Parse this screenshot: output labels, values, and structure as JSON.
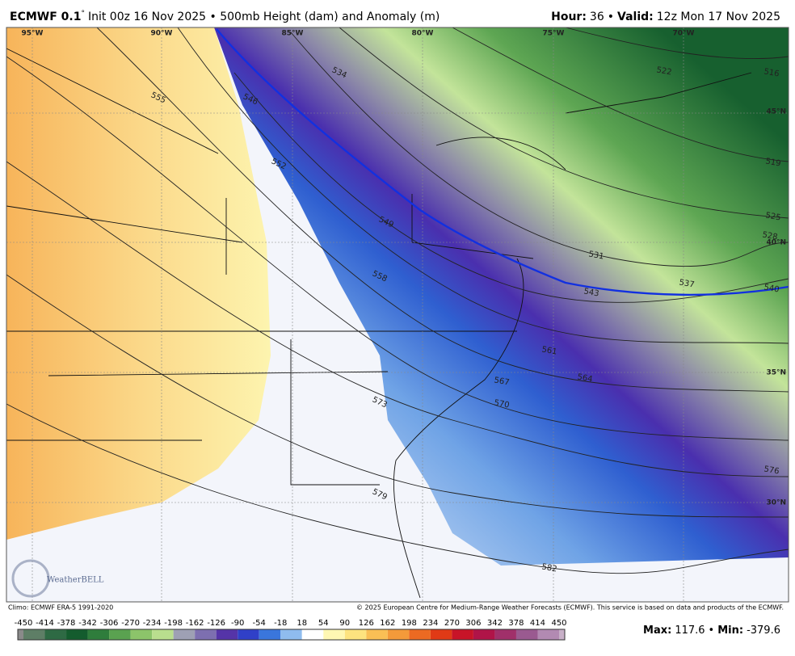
{
  "header": {
    "model": "ECMWF 0.1",
    "degree": "°",
    "description": "Init 00z 16 Nov 2025 • 500mb Height (dam) and Anomaly (m)",
    "hour_label": "Hour:",
    "hour_value": "36",
    "separator": "•",
    "valid_label": "Valid:",
    "valid_value": "12z Mon 17 Nov 2025"
  },
  "longitudes": [
    "95°W",
    "90°W",
    "85°W",
    "80°W",
    "75°W",
    "70°W"
  ],
  "latitudes": [
    "45°N",
    "40°N",
    "35°N",
    "30°N"
  ],
  "contour_labels": [
    "516",
    "519",
    "522",
    "525",
    "528",
    "531",
    "534",
    "537",
    "540",
    "543",
    "546",
    "549",
    "552",
    "555",
    "558",
    "561",
    "564",
    "567",
    "570",
    "573",
    "576",
    "579",
    "582"
  ],
  "logo": "WeatherBELL",
  "footer": {
    "climo": "Climo: ECMWF ERA-5 1991-2020",
    "copyright": "© 2025 European Centre for Medium-Range Weather Forecasts (ECMWF). This service is based on data and products of the ECMWF."
  },
  "colorbar": {
    "ticks": [
      -450,
      -414,
      -378,
      -342,
      -306,
      -270,
      -234,
      -198,
      -162,
      -126,
      -90,
      -54,
      -18,
      18,
      54,
      90,
      126,
      162,
      198,
      234,
      270,
      306,
      342,
      378,
      414,
      450
    ]
  },
  "stats": {
    "max_label": "Max:",
    "max_value": "117.6",
    "separator": "•",
    "min_label": "Min:",
    "min_value": "-379.6"
  }
}
